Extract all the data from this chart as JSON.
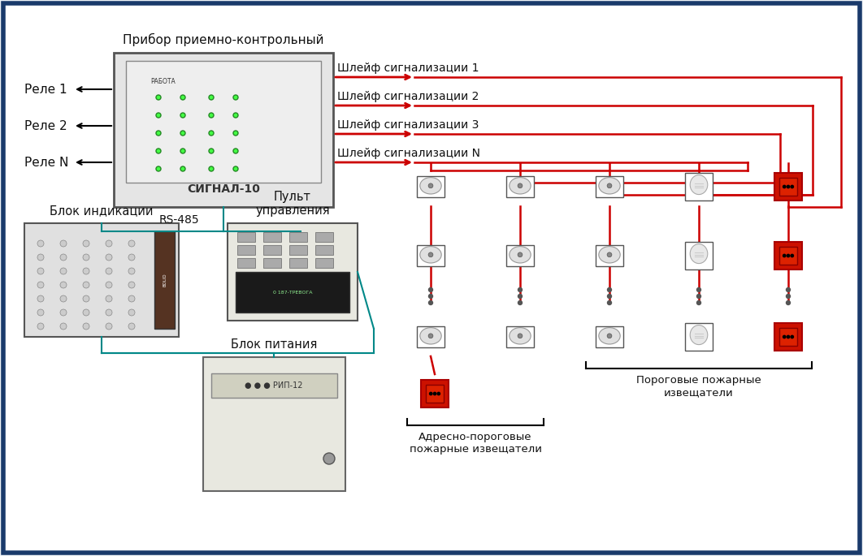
{
  "bg_color": "#f0f4f8",
  "border_color": "#1a3a6b",
  "title_texts": {
    "pribor": "Прибор приемно-контрольный",
    "blok_ind": "Блок индикации",
    "pult": "Пульт\nуправления",
    "blok_pit": "Блок питания",
    "rs485": "RS-485",
    "relay1": "Реле 1",
    "relay2": "Реле 2",
    "relayN": "Реле N",
    "shleif1": "Шлейф сигнализации 1",
    "shleif2": "Шлейф сигнализации 2",
    "shleif3": "Шлейф сигнализации 3",
    "shleifN": "Шлейф сигнализации N",
    "addr_thresh": "Адресно-пороговые\nпожарные извещатели",
    "thresh": "Пороговые пожарные\nизвещатели",
    "signal10": "СИГНАЛ-10"
  },
  "colors": {
    "red_line": "#cc0000",
    "teal_line": "#008080",
    "box_border": "#333333",
    "pribor_fill": "#e8e8e8",
    "pribor_border": "#444444",
    "text_dark": "#111111",
    "red_device": "#cc2200",
    "white_device": "#f5f5f5",
    "gray_bg": "#d0d0d0"
  }
}
